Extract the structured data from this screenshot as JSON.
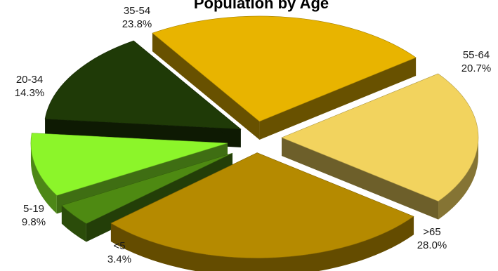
{
  "chart_data": {
    "type": "pie",
    "title": "Population by Age",
    "style": "3d-exploded",
    "slices": [
      {
        "label": "35-54",
        "value": 23.8,
        "value_label": "23.8%",
        "color": "#E8B400"
      },
      {
        "label": "55-64",
        "value": 20.7,
        "value_label": "20.7%",
        "color": "#F2D35E"
      },
      {
        "label": ">65",
        "value": 28.0,
        "value_label": "28.0%",
        "color": "#B58A00"
      },
      {
        "label": "<5",
        "value": 3.4,
        "value_label": "3.4%",
        "color": "#4E8A12"
      },
      {
        "label": "5-19",
        "value": 9.8,
        "value_label": "9.8%",
        "color": "#8CF52A"
      },
      {
        "label": "20-34",
        "value": 14.3,
        "value_label": "14.3%",
        "color": "#1F3A07"
      }
    ]
  }
}
